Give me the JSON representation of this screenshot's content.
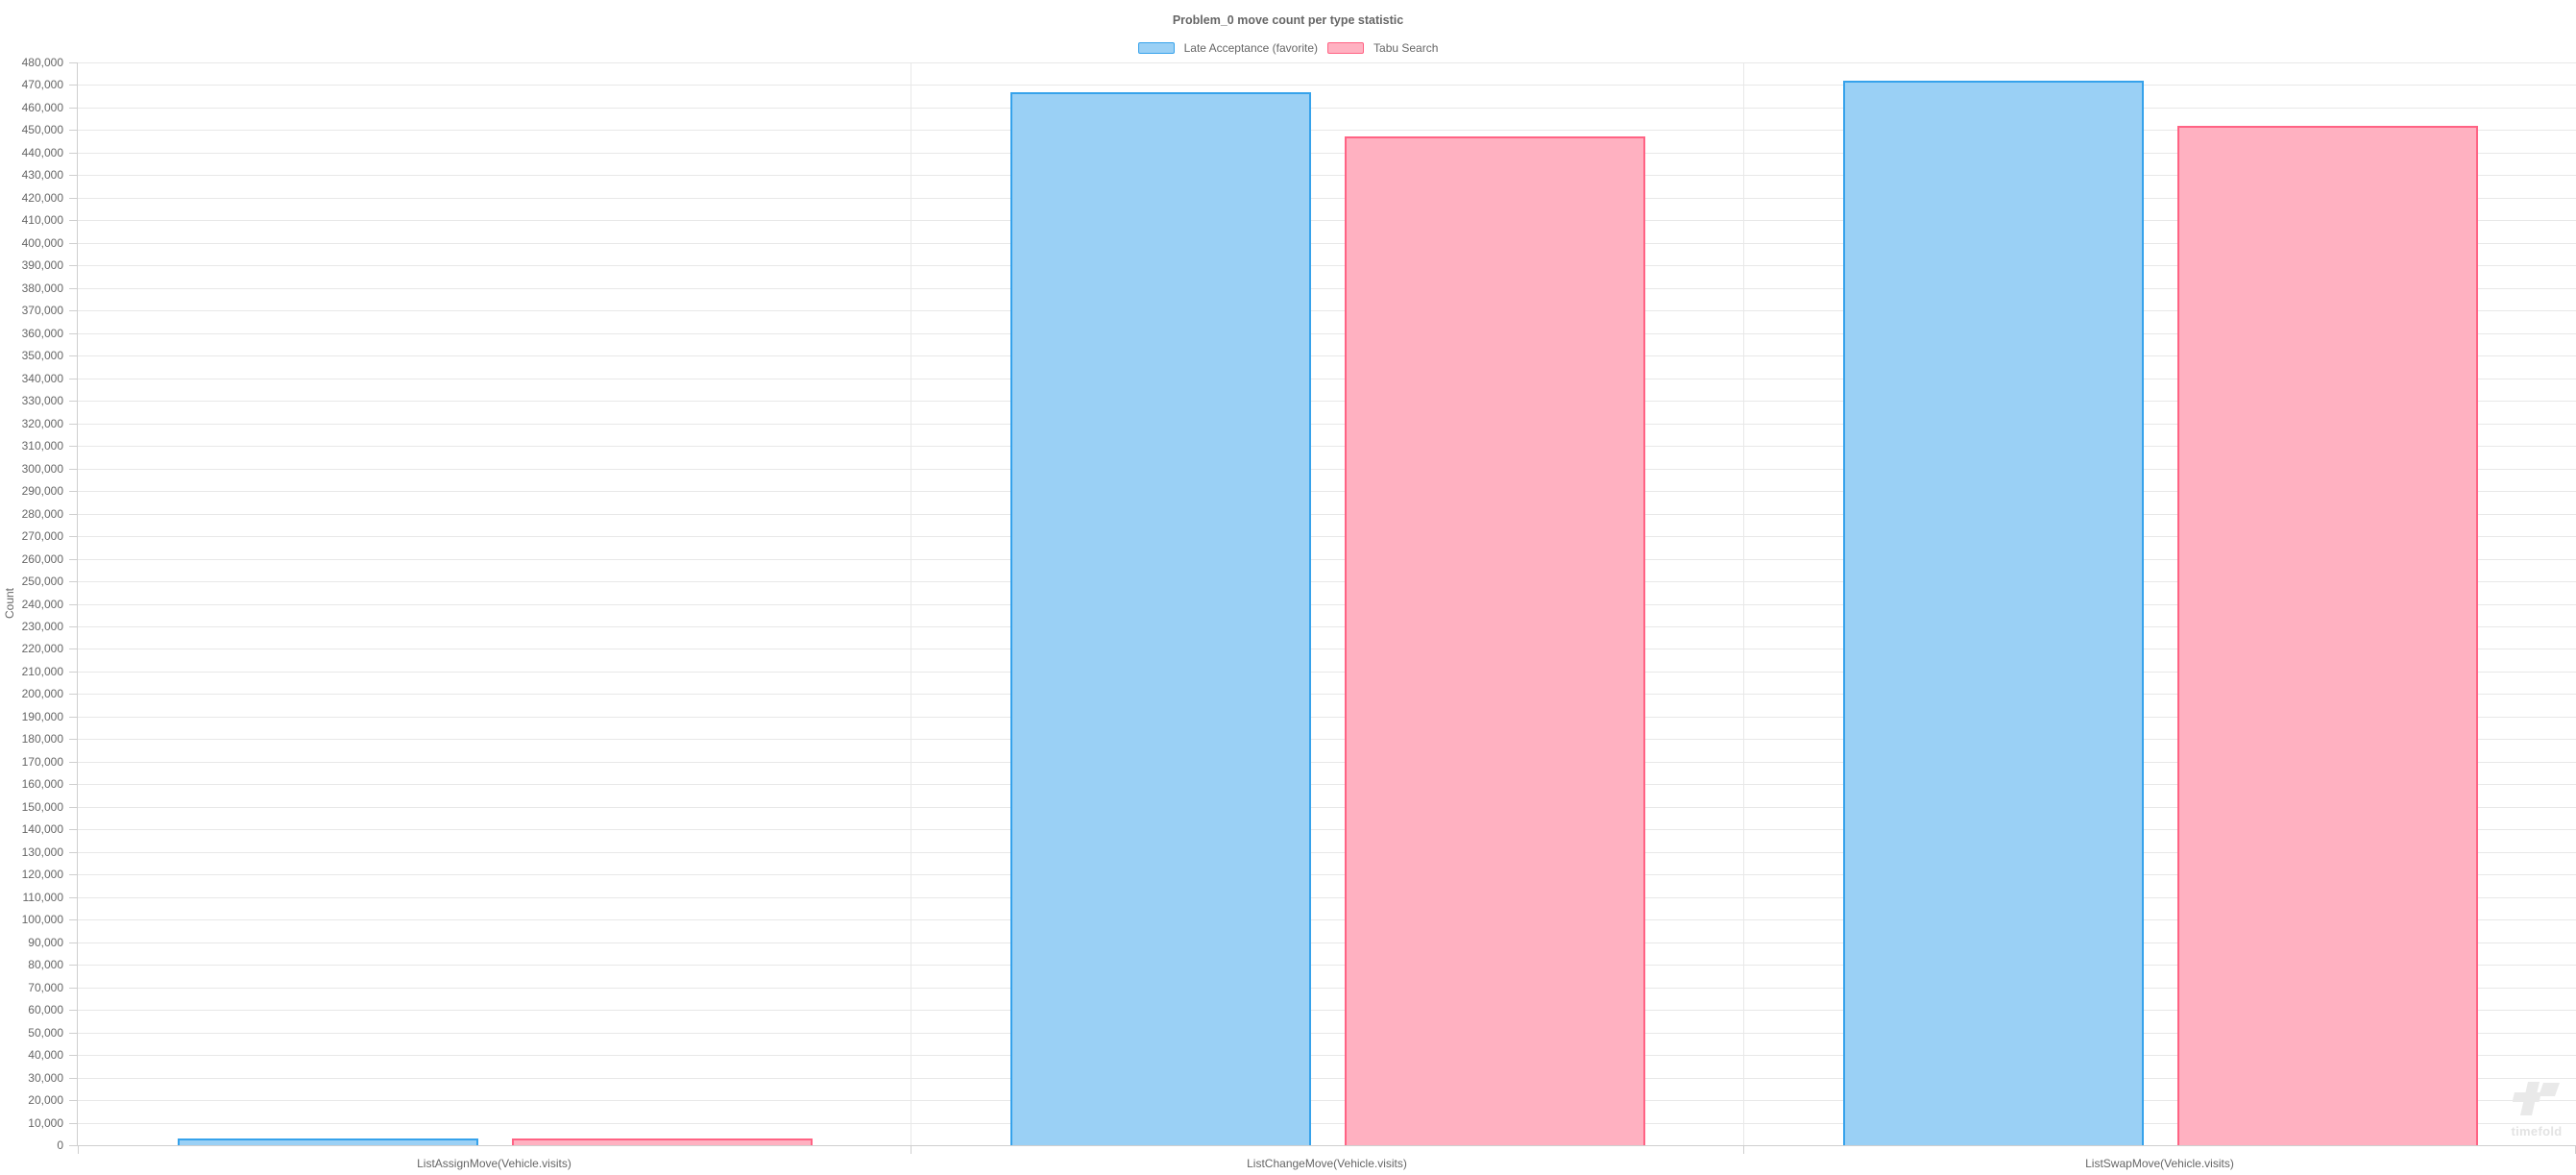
{
  "title": "Problem_0 move count per type statistic",
  "legend": [
    {
      "label": "Late Acceptance (favorite)",
      "fill": "#9AD0F5",
      "border": "#36A2EB"
    },
    {
      "label": "Tabu Search",
      "fill": "#FFB1C1",
      "border": "#FF6384"
    }
  ],
  "watermark": {
    "text": "timefold"
  },
  "colors": {
    "text": "#666666",
    "gridline": "#e8e8e8",
    "axis": "#cfcfcf",
    "blue_border": "#36A2EB",
    "blue_fill": "#9AD0F5",
    "pink_border": "#FF6384",
    "pink_fill": "#FFB1C1"
  },
  "chart_data": {
    "type": "bar",
    "title": "Problem_0 move count per type statistic",
    "categories": [
      "ListAssignMove(Vehicle.visits)",
      "ListChangeMove(Vehicle.visits)",
      "ListSwapMove(Vehicle.visits)"
    ],
    "series": [
      {
        "name": "Late Acceptance (favorite)",
        "color_fill": "#9AD0F5",
        "color_border": "#36A2EB",
        "values": [
          3200,
          466800,
          471800
        ]
      },
      {
        "name": "Tabu Search",
        "color_fill": "#FFB1C1",
        "color_border": "#FF6384",
        "values": [
          3000,
          447300,
          451800
        ]
      }
    ],
    "xlabel": "",
    "ylabel": "Count",
    "ylim": [
      0,
      480000
    ],
    "ytick_step": 10000,
    "grid": true,
    "legend_position": "top"
  }
}
